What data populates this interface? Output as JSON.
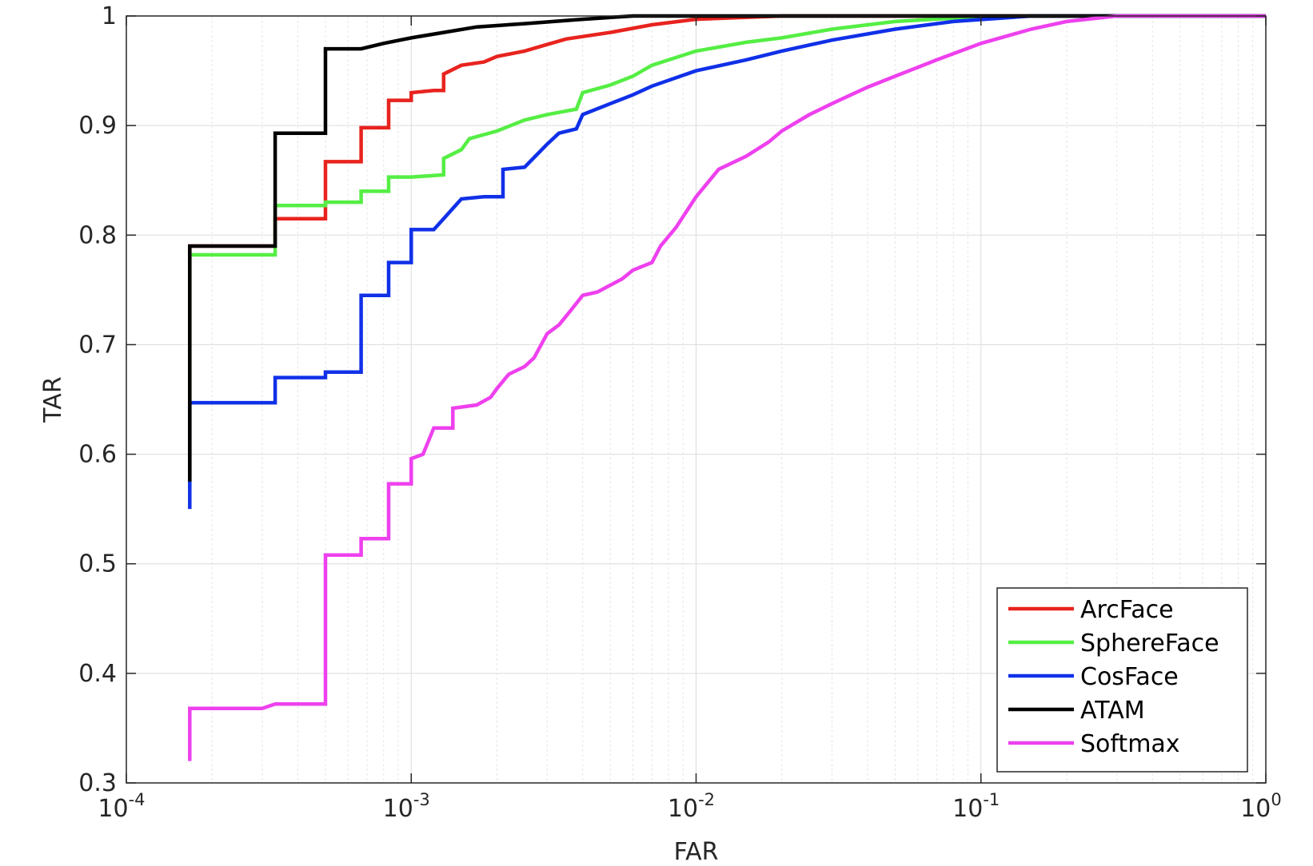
{
  "chart_data": {
    "type": "line",
    "xlabel": "FAR",
    "ylabel": "TAR",
    "xscale": "log",
    "xlim": [
      0.0001,
      1
    ],
    "ylim": [
      0.3,
      1
    ],
    "grid": true,
    "legend_position": "bottom-right",
    "x_ticks": [
      {
        "value": 0.0001,
        "base": "10",
        "exp": "-4"
      },
      {
        "value": 0.001,
        "base": "10",
        "exp": "-3"
      },
      {
        "value": 0.01,
        "base": "10",
        "exp": "-2"
      },
      {
        "value": 0.1,
        "base": "10",
        "exp": "-1"
      },
      {
        "value": 1,
        "base": "10",
        "exp": "0"
      }
    ],
    "y_ticks": [
      {
        "value": 0.3,
        "label": "0.3"
      },
      {
        "value": 0.4,
        "label": "0.4"
      },
      {
        "value": 0.5,
        "label": "0.5"
      },
      {
        "value": 0.6,
        "label": "0.6"
      },
      {
        "value": 0.7,
        "label": "0.7"
      },
      {
        "value": 0.8,
        "label": "0.8"
      },
      {
        "value": 0.9,
        "label": "0.9"
      },
      {
        "value": 1,
        "label": "1"
      }
    ],
    "series": [
      {
        "name": "ArcFace",
        "color": "#e8231e",
        "points": [
          [
            0.000167,
            0.58
          ],
          [
            0.000167,
            0.79
          ],
          [
            0.000333,
            0.79
          ],
          [
            0.000333,
            0.815
          ],
          [
            0.0005,
            0.815
          ],
          [
            0.0005,
            0.867
          ],
          [
            0.000667,
            0.867
          ],
          [
            0.000667,
            0.898
          ],
          [
            0.000833,
            0.898
          ],
          [
            0.000833,
            0.923
          ],
          [
            0.001,
            0.923
          ],
          [
            0.001,
            0.93
          ],
          [
            0.0012,
            0.932
          ],
          [
            0.0013,
            0.932
          ],
          [
            0.0013,
            0.947
          ],
          [
            0.0015,
            0.955
          ],
          [
            0.0018,
            0.958
          ],
          [
            0.002,
            0.963
          ],
          [
            0.0025,
            0.968
          ],
          [
            0.003,
            0.974
          ],
          [
            0.0035,
            0.979
          ],
          [
            0.005,
            0.985
          ],
          [
            0.007,
            0.992
          ],
          [
            0.01,
            0.997
          ],
          [
            0.02,
            1.0
          ],
          [
            1,
            1.0
          ]
        ]
      },
      {
        "name": "SphereFace",
        "color": "#55ee44",
        "points": [
          [
            0.000167,
            0.57
          ],
          [
            0.000167,
            0.782
          ],
          [
            0.000333,
            0.782
          ],
          [
            0.000333,
            0.827
          ],
          [
            0.0005,
            0.827
          ],
          [
            0.0005,
            0.83
          ],
          [
            0.000667,
            0.83
          ],
          [
            0.000667,
            0.84
          ],
          [
            0.000833,
            0.84
          ],
          [
            0.000833,
            0.853
          ],
          [
            0.001,
            0.853
          ],
          [
            0.0013,
            0.855
          ],
          [
            0.0013,
            0.87
          ],
          [
            0.0015,
            0.878
          ],
          [
            0.0016,
            0.888
          ],
          [
            0.002,
            0.895
          ],
          [
            0.0025,
            0.905
          ],
          [
            0.003,
            0.91
          ],
          [
            0.0038,
            0.915
          ],
          [
            0.004,
            0.93
          ],
          [
            0.005,
            0.937
          ],
          [
            0.006,
            0.945
          ],
          [
            0.007,
            0.955
          ],
          [
            0.01,
            0.968
          ],
          [
            0.015,
            0.976
          ],
          [
            0.02,
            0.98
          ],
          [
            0.03,
            0.988
          ],
          [
            0.05,
            0.995
          ],
          [
            0.08,
            0.998
          ],
          [
            0.15,
            1.0
          ],
          [
            1,
            1.0
          ]
        ]
      },
      {
        "name": "CosFace",
        "color": "#1030e8",
        "points": [
          [
            0.000167,
            0.55
          ],
          [
            0.000167,
            0.647
          ],
          [
            0.000333,
            0.647
          ],
          [
            0.000333,
            0.67
          ],
          [
            0.0005,
            0.67
          ],
          [
            0.0005,
            0.675
          ],
          [
            0.000667,
            0.675
          ],
          [
            0.000667,
            0.745
          ],
          [
            0.000833,
            0.745
          ],
          [
            0.000833,
            0.775
          ],
          [
            0.001,
            0.775
          ],
          [
            0.001,
            0.805
          ],
          [
            0.0012,
            0.805
          ],
          [
            0.0013,
            0.815
          ],
          [
            0.0015,
            0.833
          ],
          [
            0.0018,
            0.835
          ],
          [
            0.0021,
            0.835
          ],
          [
            0.0021,
            0.86
          ],
          [
            0.0025,
            0.862
          ],
          [
            0.003,
            0.883
          ],
          [
            0.0033,
            0.893
          ],
          [
            0.0038,
            0.897
          ],
          [
            0.004,
            0.91
          ],
          [
            0.005,
            0.92
          ],
          [
            0.006,
            0.928
          ],
          [
            0.007,
            0.936
          ],
          [
            0.01,
            0.95
          ],
          [
            0.015,
            0.96
          ],
          [
            0.02,
            0.968
          ],
          [
            0.03,
            0.978
          ],
          [
            0.05,
            0.988
          ],
          [
            0.08,
            0.995
          ],
          [
            0.15,
            1.0
          ],
          [
            1,
            1.0
          ]
        ]
      },
      {
        "name": "ATAM",
        "color": "#000000",
        "points": [
          [
            0.000167,
            0.575
          ],
          [
            0.000167,
            0.79
          ],
          [
            0.000333,
            0.79
          ],
          [
            0.000333,
            0.893
          ],
          [
            0.0005,
            0.893
          ],
          [
            0.0005,
            0.97
          ],
          [
            0.000667,
            0.97
          ],
          [
            0.0008,
            0.975
          ],
          [
            0.001,
            0.98
          ],
          [
            0.0013,
            0.985
          ],
          [
            0.0017,
            0.99
          ],
          [
            0.0025,
            0.993
          ],
          [
            0.004,
            0.997
          ],
          [
            0.006,
            1.0
          ],
          [
            1,
            1.0
          ]
        ]
      },
      {
        "name": "Softmax",
        "color": "#ee40ee",
        "points": [
          [
            0.000167,
            0.32
          ],
          [
            0.000167,
            0.368
          ],
          [
            0.0003,
            0.368
          ],
          [
            0.000333,
            0.372
          ],
          [
            0.0005,
            0.372
          ],
          [
            0.0005,
            0.508
          ],
          [
            0.000667,
            0.508
          ],
          [
            0.000667,
            0.523
          ],
          [
            0.000833,
            0.523
          ],
          [
            0.000833,
            0.573
          ],
          [
            0.001,
            0.573
          ],
          [
            0.001,
            0.596
          ],
          [
            0.0011,
            0.6
          ],
          [
            0.0012,
            0.624
          ],
          [
            0.0014,
            0.624
          ],
          [
            0.0014,
            0.642
          ],
          [
            0.0017,
            0.645
          ],
          [
            0.0019,
            0.652
          ],
          [
            0.002,
            0.66
          ],
          [
            0.0022,
            0.673
          ],
          [
            0.0025,
            0.68
          ],
          [
            0.0027,
            0.688
          ],
          [
            0.003,
            0.71
          ],
          [
            0.0033,
            0.718
          ],
          [
            0.0036,
            0.73
          ],
          [
            0.004,
            0.745
          ],
          [
            0.0045,
            0.748
          ],
          [
            0.0055,
            0.76
          ],
          [
            0.006,
            0.768
          ],
          [
            0.007,
            0.775
          ],
          [
            0.0075,
            0.79
          ],
          [
            0.0085,
            0.807
          ],
          [
            0.01,
            0.835
          ],
          [
            0.012,
            0.86
          ],
          [
            0.015,
            0.872
          ],
          [
            0.018,
            0.885
          ],
          [
            0.02,
            0.895
          ],
          [
            0.025,
            0.91
          ],
          [
            0.03,
            0.92
          ],
          [
            0.04,
            0.935
          ],
          [
            0.05,
            0.945
          ],
          [
            0.07,
            0.96
          ],
          [
            0.1,
            0.975
          ],
          [
            0.15,
            0.988
          ],
          [
            0.2,
            0.995
          ],
          [
            0.3,
            1.0
          ],
          [
            1,
            1.0
          ]
        ]
      }
    ]
  }
}
